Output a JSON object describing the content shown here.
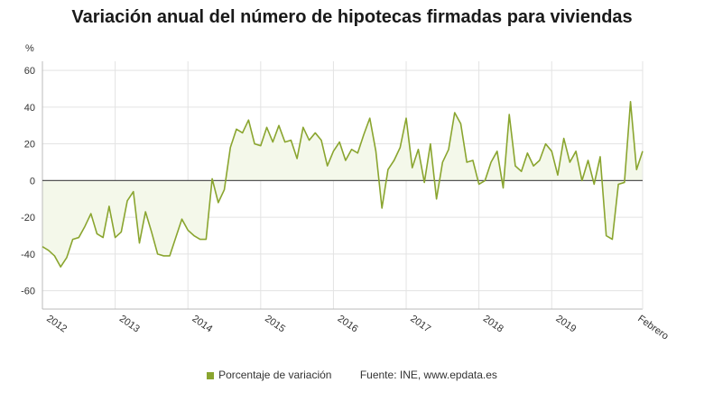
{
  "title": "Variación anual del número de hipotecas firmadas para viviendas",
  "legend": {
    "series_label": "Porcentaje de variación",
    "source": "Fuente: INE, www.epdata.es"
  },
  "colors": {
    "line": "#8aa52f",
    "fill": "#f4f8ea",
    "grid": "#e3e3e3",
    "zero": "#555555",
    "text": "#333333"
  },
  "chart_data": {
    "type": "area",
    "title": "Variación anual del número de hipotecas firmadas para viviendas",
    "ylabel": "%",
    "xlabel": "",
    "ylim": [
      -70,
      65
    ],
    "yticks": [
      -60,
      -40,
      -20,
      0,
      20,
      40,
      60
    ],
    "grid": true,
    "legend_position": "bottom",
    "year_labels": [
      "2012",
      "2013",
      "2014",
      "2015",
      "2016",
      "2017",
      "2018",
      "2019",
      "Febrero"
    ],
    "series": [
      {
        "name": "Porcentaje de variación",
        "start": "2012-01",
        "values": [
          -36,
          -38,
          -41,
          -47,
          -42,
          -32,
          -31,
          -25,
          -18,
          -29,
          -31,
          -14,
          -31,
          -28,
          -11,
          -6,
          -34,
          -17,
          -28,
          -40,
          -41,
          -41,
          -31,
          -21,
          -27,
          -30,
          -32,
          -32,
          1,
          -12,
          -5,
          18,
          28,
          26,
          33,
          20,
          19,
          29,
          21,
          30,
          21,
          22,
          12,
          29,
          22,
          26,
          22,
          8,
          16,
          21,
          11,
          17,
          15,
          25,
          34,
          16,
          -15,
          6,
          11,
          18,
          34,
          7,
          17,
          -1,
          20,
          -10,
          10,
          17,
          37,
          31,
          10,
          11,
          -2,
          0,
          10,
          16,
          -4,
          36,
          8,
          5,
          15,
          8,
          11,
          20,
          16,
          3,
          23,
          10,
          16,
          0,
          11,
          -2,
          13,
          -30,
          -32,
          -2,
          -1,
          43,
          6,
          16
        ]
      }
    ]
  }
}
